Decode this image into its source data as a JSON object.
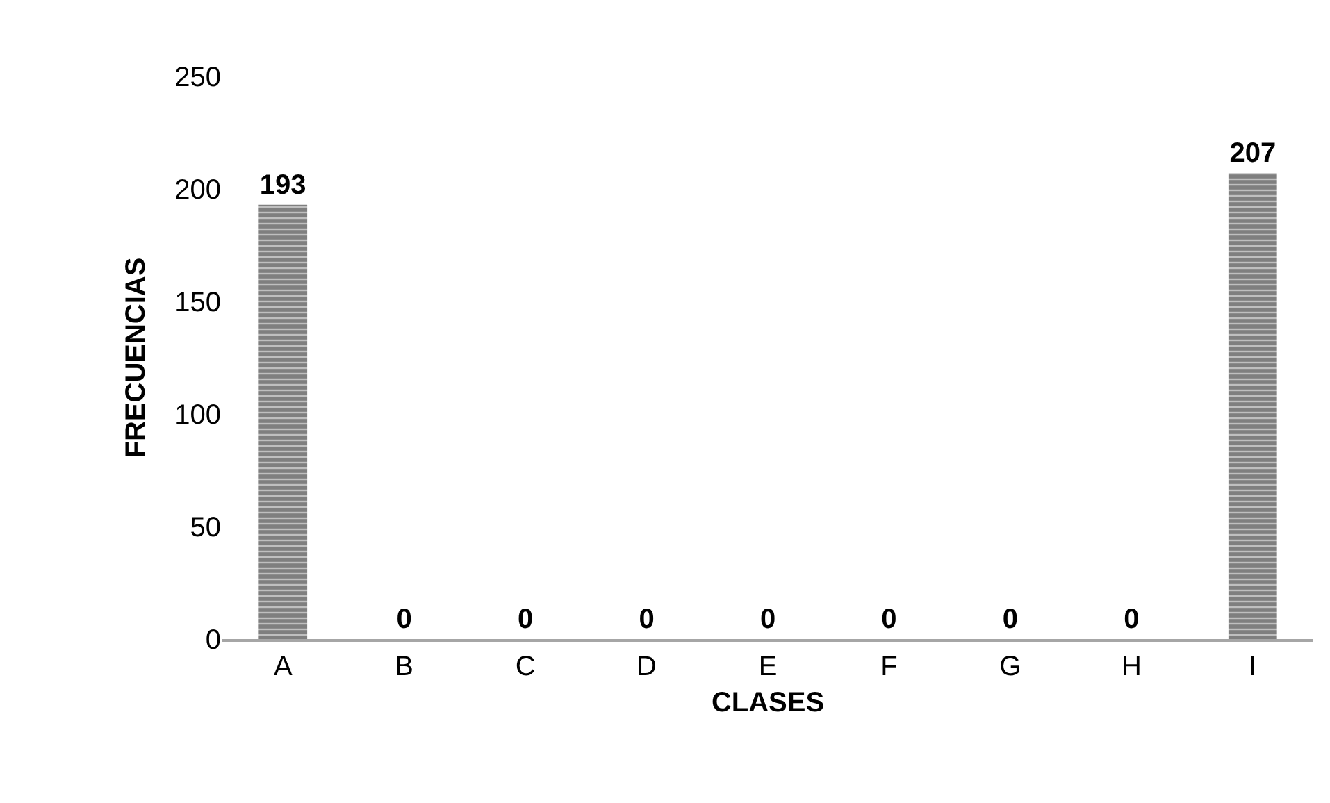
{
  "chart_data": {
    "type": "bar",
    "categories": [
      "A",
      "B",
      "C",
      "D",
      "E",
      "F",
      "G",
      "H",
      "I"
    ],
    "values": [
      193,
      0,
      0,
      0,
      0,
      0,
      0,
      0,
      207
    ],
    "color": "#7f7f7f",
    "xlabel": "CLASES",
    "ylabel": "FRECUENCIAS",
    "ylim": [
      0,
      250
    ],
    "yticks": [
      0,
      50,
      100,
      150,
      200,
      250
    ],
    "data_labels": true
  }
}
